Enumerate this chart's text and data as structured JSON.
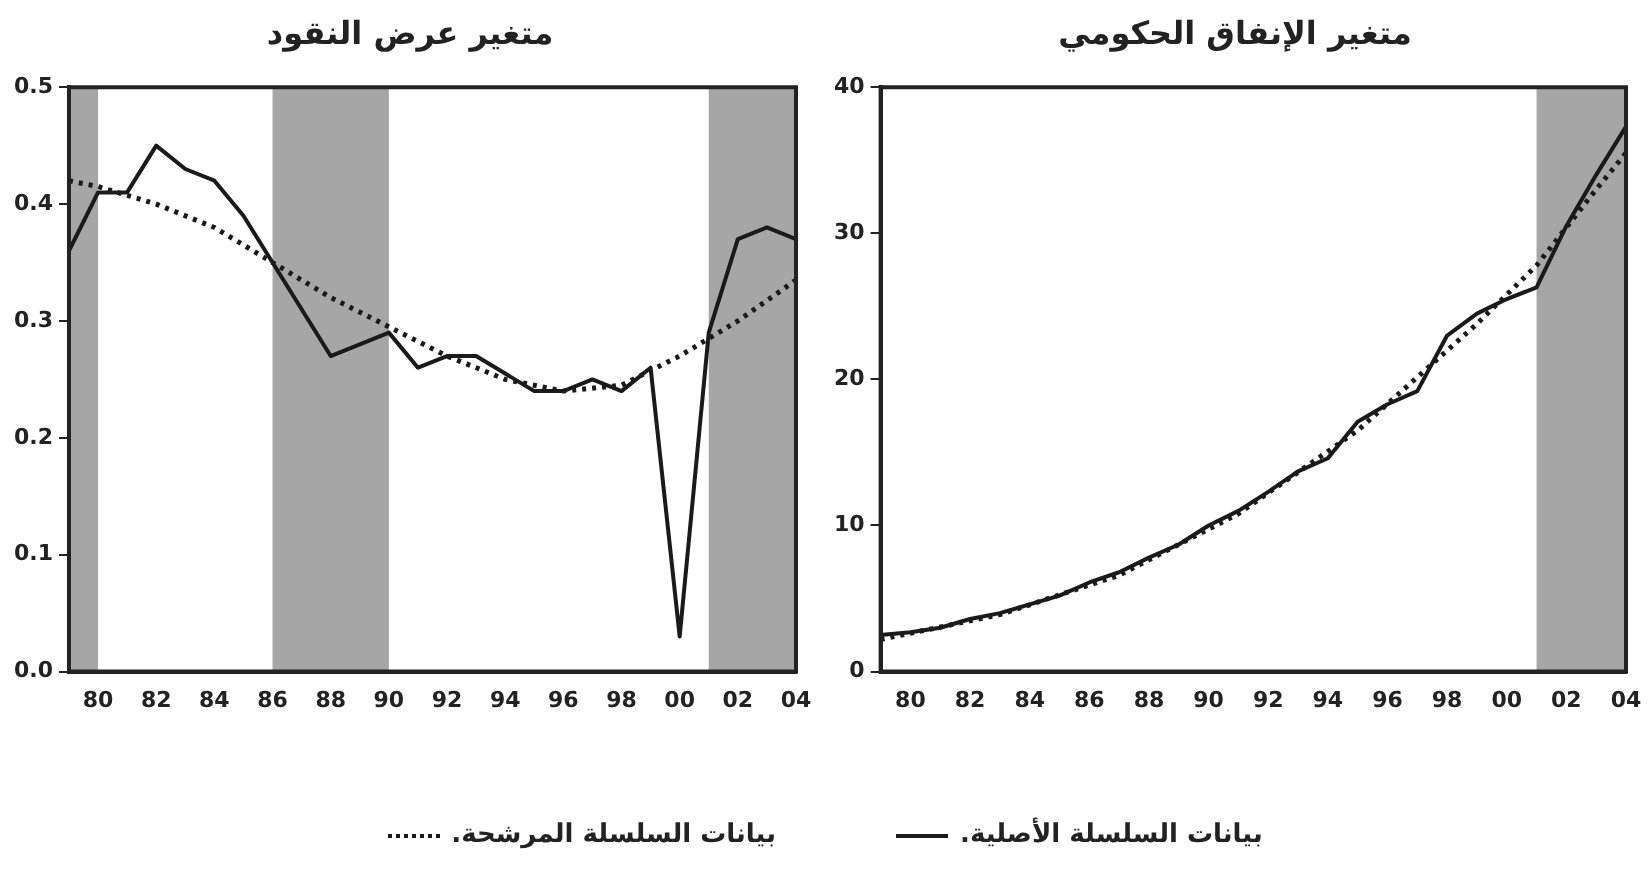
{
  "chart_data": [
    {
      "type": "line",
      "title": "متغير عرض النقود",
      "x": [
        1979,
        1980,
        1981,
        1982,
        1983,
        1984,
        1985,
        1986,
        1987,
        1988,
        1989,
        1990,
        1991,
        1992,
        1993,
        1994,
        1995,
        1996,
        1997,
        1998,
        1999,
        2000,
        2001,
        2002,
        2003,
        2004
      ],
      "series": [
        {
          "name": "بيانات السلسلة الأصلية.",
          "color": "#1a1a1a",
          "line_style": "solid",
          "values": [
            0.36,
            0.41,
            0.41,
            0.45,
            0.43,
            0.42,
            0.39,
            0.35,
            0.31,
            0.27,
            0.28,
            0.29,
            0.26,
            0.27,
            0.27,
            0.255,
            0.24,
            0.24,
            0.25,
            0.24,
            0.26,
            0.03,
            0.29,
            0.37,
            0.38,
            0.37
          ]
        },
        {
          "name": "بيانات السلسلة المرشحة.",
          "color": "#1a1a1a",
          "line_style": "dotted",
          "x": [
            1979,
            1980,
            1982,
            1984,
            1986,
            1988,
            1990,
            1992,
            1994,
            1996,
            1998,
            2000,
            2002,
            2004
          ],
          "values": [
            0.42,
            0.415,
            0.4,
            0.38,
            0.35,
            0.32,
            0.295,
            0.27,
            0.25,
            0.24,
            0.245,
            0.27,
            0.3,
            0.335
          ]
        }
      ],
      "xlim": [
        1979,
        2004
      ],
      "xticks": [
        {
          "value": 1980,
          "label": "80"
        },
        {
          "value": 1982,
          "label": "82"
        },
        {
          "value": 1984,
          "label": "84"
        },
        {
          "value": 1986,
          "label": "86"
        },
        {
          "value": 1988,
          "label": "88"
        },
        {
          "value": 1990,
          "label": "90"
        },
        {
          "value": 1992,
          "label": "92"
        },
        {
          "value": 1994,
          "label": "94"
        },
        {
          "value": 1996,
          "label": "96"
        },
        {
          "value": 1998,
          "label": "98"
        },
        {
          "value": 2000,
          "label": "00"
        },
        {
          "value": 2002,
          "label": "02"
        },
        {
          "value": 2004,
          "label": "04"
        }
      ],
      "ylim": [
        0,
        0.5
      ],
      "yticks": [
        {
          "value": 0,
          "label": "0.0"
        },
        0.1,
        0.2,
        0.3,
        0.4,
        0.5
      ],
      "bands": [
        {
          "axis": "x",
          "from": 1979,
          "to": 1980,
          "color": "#a6a6a6"
        },
        {
          "axis": "x",
          "from": 1986,
          "to": 1990,
          "color": "#a6a6a6"
        },
        {
          "axis": "x",
          "from": 2001,
          "to": 2004,
          "color": "#a6a6a6"
        }
      ],
      "grid": false,
      "marker": "none",
      "legend": "bottom"
    },
    {
      "type": "line",
      "title": "متغير الإنفاق الحكومي",
      "x": [
        1979,
        1980,
        1981,
        1982,
        1983,
        1984,
        1985,
        1986,
        1987,
        1988,
        1989,
        1990,
        1991,
        1992,
        1993,
        1994,
        1995,
        1996,
        1997,
        1998,
        1999,
        2000,
        2001,
        2002,
        2003,
        2004
      ],
      "series": [
        {
          "color": "#1a1a1a",
          "line_style": "solid",
          "values": [
            2.5,
            2.7,
            3.0,
            3.6,
            4.0,
            4.6,
            5.2,
            6.1,
            6.8,
            7.8,
            8.7,
            10.0,
            11.0,
            12.3,
            13.7,
            14.6,
            17.1,
            18.3,
            19.2,
            23.0,
            24.5,
            25.5,
            26.3,
            30.5,
            34.0,
            37.3
          ]
        },
        {
          "color": "#1a1a1a",
          "line_style": "dotted",
          "x": [
            1979,
            1983,
            1987,
            1991,
            1995,
            1999,
            2001,
            2003,
            2004
          ],
          "values": [
            2.2,
            3.9,
            6.6,
            10.8,
            16.5,
            23.8,
            27.8,
            33.0,
            35.5
          ]
        }
      ],
      "xlim": [
        1979,
        2004
      ],
      "xticks": [
        {
          "value": 1980,
          "label": "80"
        },
        {
          "value": 1982,
          "label": "82"
        },
        {
          "value": 1984,
          "label": "84"
        },
        {
          "value": 1986,
          "label": "86"
        },
        {
          "value": 1988,
          "label": "88"
        },
        {
          "value": 1990,
          "label": "90"
        },
        {
          "value": 1992,
          "label": "92"
        },
        {
          "value": 1994,
          "label": "94"
        },
        {
          "value": 1996,
          "label": "96"
        },
        {
          "value": 1998,
          "label": "98"
        },
        {
          "value": 2000,
          "label": "00"
        },
        {
          "value": 2002,
          "label": "02"
        },
        {
          "value": 2004,
          "label": "04"
        }
      ],
      "ylim": [
        0,
        40
      ],
      "yticks": [
        0,
        10,
        20,
        30,
        40
      ],
      "bands": [
        {
          "axis": "x",
          "from": 2001,
          "to": 2004,
          "color": "#a6a6a6"
        }
      ],
      "grid": false,
      "marker": "none",
      "legend": false
    }
  ]
}
